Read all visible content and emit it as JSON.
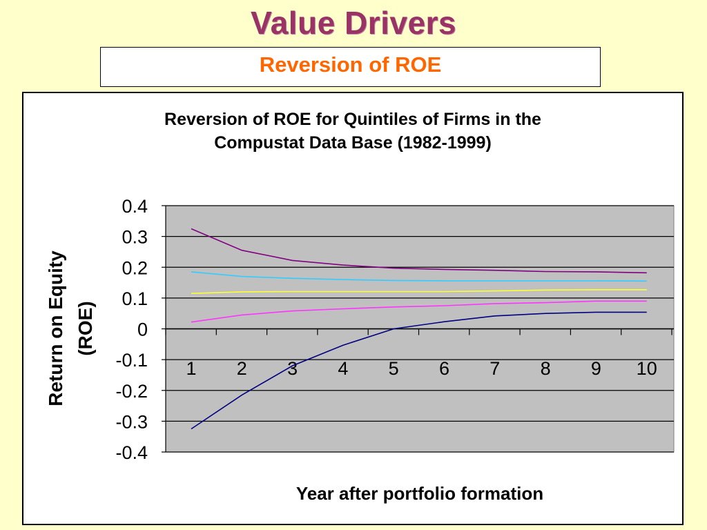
{
  "slide": {
    "title": "Value Drivers",
    "subtitle": "Reversion of ROE"
  },
  "chart_data": {
    "type": "line",
    "title_lines": [
      "Reversion of ROE for Quintiles of Firms in the",
      "Compustat Data Base (1982-1999)"
    ],
    "xlabel": "Year after portfolio formation",
    "ylabel_lines": [
      "Return on Equity",
      "(ROE)"
    ],
    "x": [
      1,
      2,
      3,
      4,
      5,
      6,
      7,
      8,
      9,
      10
    ],
    "x_tick_labels": [
      "1",
      "2",
      "3",
      "4",
      "5",
      "6",
      "7",
      "8",
      "9",
      "10"
    ],
    "ylim": [
      -0.4,
      0.4
    ],
    "y_ticks": [
      0.4,
      0.3,
      0.2,
      0.1,
      0,
      -0.1,
      -0.2,
      -0.3,
      -0.4
    ],
    "y_tick_labels": [
      "0.4",
      "0.3",
      "0.2",
      "0.1",
      "0",
      "-0.1",
      "-0.2",
      "-0.3",
      "-0.4"
    ],
    "grid": true,
    "plot_background": "#c0c0c0",
    "series": [
      {
        "color": "#800080",
        "values": [
          0.325,
          0.255,
          0.222,
          0.207,
          0.197,
          0.193,
          0.19,
          0.186,
          0.185,
          0.182
        ]
      },
      {
        "color": "#33ccff",
        "values": [
          0.185,
          0.17,
          0.164,
          0.16,
          0.157,
          0.156,
          0.156,
          0.156,
          0.156,
          0.155
        ]
      },
      {
        "color": "#ffff33",
        "values": [
          0.115,
          0.12,
          0.121,
          0.121,
          0.121,
          0.121,
          0.123,
          0.126,
          0.127,
          0.127
        ]
      },
      {
        "color": "#ff33ff",
        "values": [
          0.022,
          0.045,
          0.058,
          0.065,
          0.071,
          0.075,
          0.082,
          0.085,
          0.09,
          0.09
        ]
      },
      {
        "color": "#000080",
        "values": [
          -0.325,
          -0.215,
          -0.12,
          -0.053,
          0.0,
          0.023,
          0.042,
          0.05,
          0.054,
          0.054
        ]
      }
    ]
  }
}
